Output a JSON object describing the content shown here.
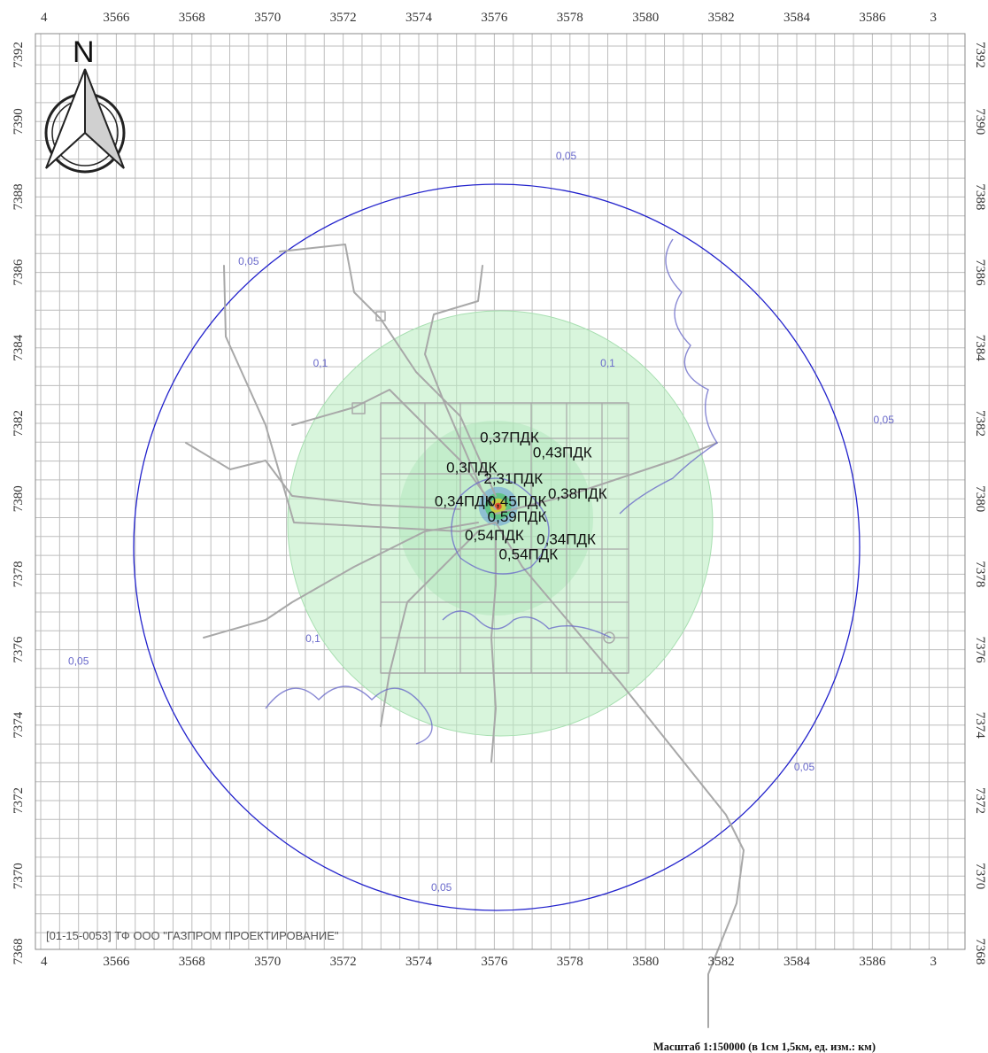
{
  "map": {
    "x_ticks": [
      "4",
      "3566",
      "3568",
      "3570",
      "3572",
      "3574",
      "3576",
      "3578",
      "3580",
      "3582",
      "3584",
      "3586",
      "3"
    ],
    "y_ticks": [
      "7392",
      "7390",
      "7388",
      "7386",
      "7384",
      "7382",
      "7380",
      "7378",
      "7376",
      "7374",
      "7372",
      "7370",
      "7368"
    ],
    "north_label": "N",
    "isoline_labels": [
      {
        "text": "0,05",
        "x": 3577.9,
        "y": 7389.0
      },
      {
        "text": "0,05",
        "x": 3569.5,
        "y": 7386.2
      },
      {
        "text": "0,05",
        "x": 3586.3,
        "y": 7382.0
      },
      {
        "text": "0,05",
        "x": 3565.0,
        "y": 7375.6
      },
      {
        "text": "0,05",
        "x": 3584.2,
        "y": 7372.8
      },
      {
        "text": "0,05",
        "x": 3574.6,
        "y": 7369.6
      },
      {
        "text": "0,1",
        "x": 3579.0,
        "y": 7383.5
      },
      {
        "text": "0,1",
        "x": 3571.4,
        "y": 7383.5
      },
      {
        "text": "0,1",
        "x": 3571.2,
        "y": 7376.2
      }
    ],
    "concentration_labels": [
      {
        "text": "0,37ПДК",
        "x": 3576.4,
        "y": 7381.5
      },
      {
        "text": "0,43ПДК",
        "x": 3577.8,
        "y": 7381.1
      },
      {
        "text": "0,3ПДК",
        "x": 3575.4,
        "y": 7380.7
      },
      {
        "text": "2,31ПДК",
        "x": 3576.5,
        "y": 7380.4
      },
      {
        "text": "0,38ПДК",
        "x": 3578.2,
        "y": 7380.0
      },
      {
        "text": "0,34ПДК",
        "x": 3575.2,
        "y": 7379.8
      },
      {
        "text": "0,45ПДК",
        "x": 3576.6,
        "y": 7379.8
      },
      {
        "text": "0,59ПДК",
        "x": 3576.6,
        "y": 7379.4
      },
      {
        "text": "0,54ПДК",
        "x": 3576.0,
        "y": 7378.9
      },
      {
        "text": "0,34ПДК",
        "x": 3577.9,
        "y": 7378.8
      },
      {
        "text": "0,54ПДК",
        "x": 3576.9,
        "y": 7378.4
      }
    ],
    "footer_stamp": "[01-15-0053] ТФ ООО \"ГАЗПРОМ ПРОЕКТИРОВАНИЕ\"",
    "scale_text": "Масштаб 1:150000 (в 1см 1,5км, ед. изм.: км)",
    "colors": {
      "grid": "#bdbdbd",
      "outer_circle": "#2222cc",
      "isoline": "#6b6bc9",
      "zone_fill": "#b8ecc0",
      "infrastructure": "#a8a8a8"
    }
  }
}
